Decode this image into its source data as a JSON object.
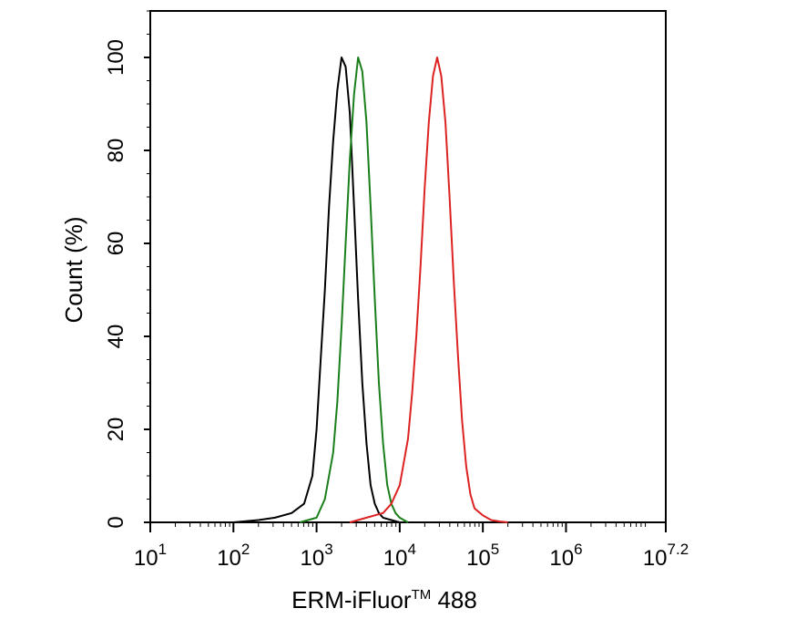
{
  "chart_data": {
    "type": "line",
    "title": "",
    "xlabel": "ERM-iFluor",
    "xlabel_superscript": "TM",
    "xlabel_suffix": " 488",
    "ylabel": "Count  (%)",
    "xscale": "log",
    "xlim": [
      1,
      7.2
    ],
    "ylim": [
      0,
      110
    ],
    "x_ticks": [
      {
        "base": "10",
        "exp": "1"
      },
      {
        "base": "10",
        "exp": "2"
      },
      {
        "base": "10",
        "exp": "3"
      },
      {
        "base": "10",
        "exp": "4"
      },
      {
        "base": "10",
        "exp": "5"
      },
      {
        "base": "10",
        "exp": "6"
      },
      {
        "base": "10",
        "exp": "7.2"
      }
    ],
    "x_tick_values": [
      1,
      2,
      3,
      4,
      5,
      6,
      7.2
    ],
    "y_ticks": [
      "0",
      "20",
      "40",
      "60",
      "80",
      "100"
    ],
    "y_tick_values": [
      0,
      20,
      40,
      60,
      80,
      100
    ],
    "grid": false,
    "legend": "none",
    "series": [
      {
        "color": "#000000",
        "x": [
          2.0,
          2.3,
          2.5,
          2.7,
          2.85,
          2.95,
          3.0,
          3.05,
          3.1,
          3.15,
          3.2,
          3.25,
          3.3,
          3.35,
          3.4,
          3.45,
          3.5,
          3.55,
          3.6,
          3.65,
          3.7,
          3.75,
          3.8,
          3.9,
          4.0
        ],
        "y": [
          0,
          0.5,
          1,
          2,
          4,
          10,
          20,
          35,
          50,
          68,
          82,
          93,
          100,
          98,
          88,
          68,
          48,
          30,
          17,
          8,
          4,
          2,
          1,
          0.5,
          0
        ]
      },
      {
        "color": "#1a7f1a",
        "x": [
          2.8,
          3.0,
          3.1,
          3.2,
          3.25,
          3.3,
          3.35,
          3.4,
          3.45,
          3.5,
          3.55,
          3.6,
          3.65,
          3.7,
          3.75,
          3.8,
          3.85,
          3.9,
          3.95,
          4.0,
          4.05,
          4.1
        ],
        "y": [
          0,
          1,
          5,
          15,
          26,
          42,
          60,
          78,
          92,
          100,
          97,
          86,
          68,
          48,
          30,
          17,
          8,
          4,
          2,
          1,
          0.5,
          0
        ]
      },
      {
        "color": "#dd2222",
        "x": [
          3.4,
          3.6,
          3.8,
          3.9,
          4.0,
          4.1,
          4.15,
          4.2,
          4.25,
          4.3,
          4.35,
          4.4,
          4.45,
          4.5,
          4.55,
          4.6,
          4.65,
          4.7,
          4.75,
          4.8,
          4.85,
          4.9,
          5.0,
          5.1,
          5.2,
          5.3
        ],
        "y": [
          0,
          1,
          2,
          4,
          8,
          18,
          28,
          40,
          55,
          72,
          86,
          96,
          100,
          96,
          86,
          70,
          52,
          36,
          22,
          12,
          6,
          3,
          1.5,
          0.5,
          0.2,
          0
        ]
      }
    ]
  }
}
